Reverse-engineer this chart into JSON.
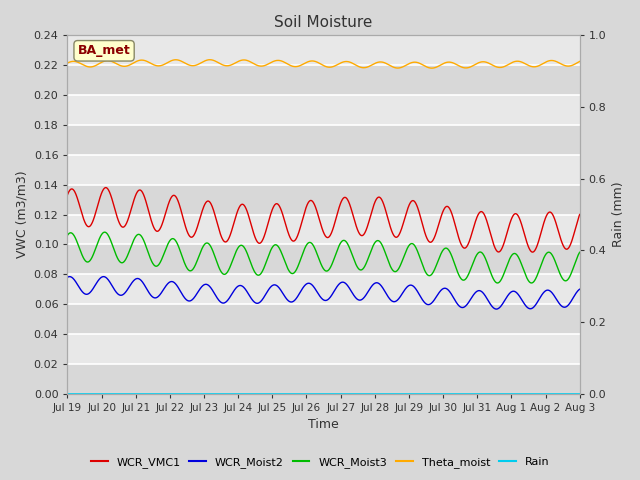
{
  "title": "Soil Moisture",
  "xlabel": "Time",
  "ylabel_left": "VWC (m3/m3)",
  "ylabel_right": "Rain (mm)",
  "annotation": "BA_met",
  "ylim_left": [
    0.0,
    0.24
  ],
  "ylim_right": [
    0.0,
    1.0
  ],
  "fig_bg_color": "#d8d8d8",
  "plot_bg_color": "#e8e8e8",
  "series": {
    "WCR_VMC1": {
      "color": "#dd0000",
      "base": 0.122,
      "amp": 0.013,
      "freq": 1.0,
      "phase": 0.8,
      "trend": -0.0008,
      "amp2": 0.004,
      "freq2": 0.13,
      "phase2": 0.5
    },
    "WCR_Moist2": {
      "color": "#0000dd",
      "base": 0.071,
      "amp": 0.006,
      "freq": 1.0,
      "phase": 1.2,
      "trend": -0.0005,
      "amp2": 0.002,
      "freq2": 0.13,
      "phase2": 0.8
    },
    "WCR_Moist3": {
      "color": "#00bb00",
      "base": 0.096,
      "amp": 0.01,
      "freq": 1.0,
      "phase": 1.0,
      "trend": -0.0007,
      "amp2": 0.003,
      "freq2": 0.13,
      "phase2": 0.6
    },
    "Theta_moist": {
      "color": "#ffaa00",
      "base": 0.2205,
      "amp": 0.002,
      "freq": 1.0,
      "phase": 0.5,
      "trend": 5e-05,
      "amp2": 0.001,
      "freq2": 0.07,
      "phase2": 0.0
    },
    "Rain": {
      "color": "#00ccee",
      "base": 0.0,
      "amp": 0.0,
      "freq": 0.0,
      "phase": 0.0,
      "trend": 0.0,
      "amp2": 0.0,
      "freq2": 0.0,
      "phase2": 0.0
    }
  },
  "xtick_labels": [
    "Jul 19",
    "Jul 20",
    "Jul 21",
    "Jul 22",
    "Jul 23",
    "Jul 24",
    "Jul 25",
    "Jul 26",
    "Jul 27",
    "Jul 28",
    "Jul 29",
    "Jul 30",
    "Jul 31",
    "Aug 1",
    "Aug 2",
    "Aug 3"
  ],
  "yticks_left": [
    0.0,
    0.02,
    0.04,
    0.06,
    0.08,
    0.1,
    0.12,
    0.14,
    0.16,
    0.18,
    0.2,
    0.22,
    0.24
  ],
  "yticks_right": [
    0.0,
    0.2,
    0.4,
    0.6,
    0.8,
    1.0
  ],
  "legend_items": [
    {
      "label": "WCR_VMC1",
      "color": "#dd0000"
    },
    {
      "label": "WCR_Moist2",
      "color": "#0000dd"
    },
    {
      "label": "WCR_Moist3",
      "color": "#00bb00"
    },
    {
      "label": "Theta_moist",
      "color": "#ffaa00"
    },
    {
      "label": "Rain",
      "color": "#00ccee"
    }
  ]
}
